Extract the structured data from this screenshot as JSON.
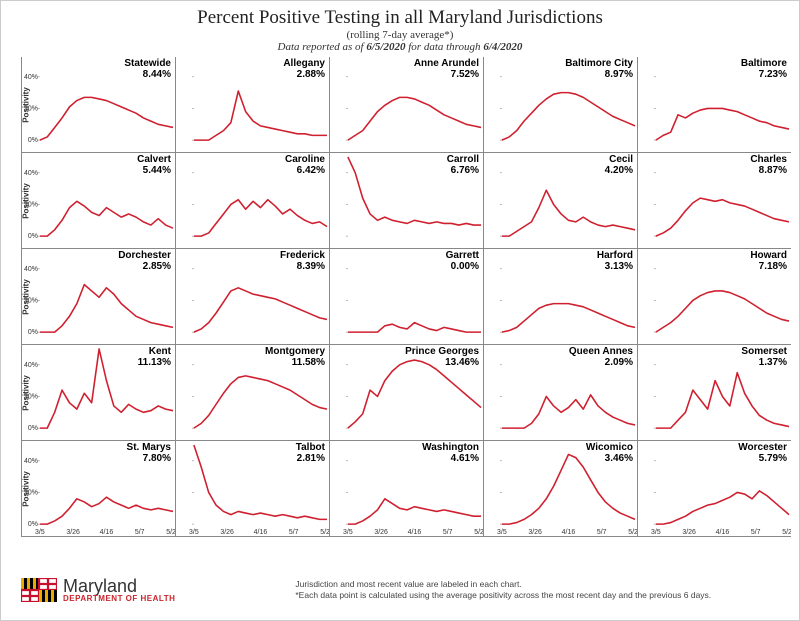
{
  "header": {
    "title": "Percent Positive Testing in all Maryland Jurisdictions",
    "subtitle": "(rolling 7-day average*)",
    "datanote_prefix": "Data reported as of ",
    "report_date": "6/5/2020",
    "datanote_mid": " for data through ",
    "through_date": "6/4/2020"
  },
  "chart_meta": {
    "series_color": "#cf2030",
    "grid_color": "#dddddd",
    "axis_color": "#888888",
    "ylabel": "Positivity",
    "ylim": [
      0,
      50
    ],
    "yticks": [
      0,
      20,
      40
    ],
    "ytick_labels": [
      "0%",
      "20%",
      "40%"
    ],
    "xtick_labels": [
      "3/5",
      "3/26",
      "4/16",
      "5/7",
      "5/28"
    ],
    "stroke_width": 1.6,
    "background": "#ffffff",
    "title_fontsize": 19,
    "panel_title_fontsize": 10
  },
  "panels": [
    {
      "name": "Statewide",
      "pct": "8.44%",
      "data": [
        0,
        2,
        8,
        14,
        21,
        25,
        27,
        27,
        26,
        25,
        23,
        21,
        19,
        17,
        14,
        12,
        10,
        9,
        8
      ]
    },
    {
      "name": "Allegany",
      "pct": "2.88%",
      "data": [
        0,
        0,
        0,
        3,
        6,
        11,
        31,
        18,
        12,
        9,
        8,
        7,
        6,
        5,
        4,
        4,
        3,
        3,
        3
      ]
    },
    {
      "name": "Anne Arundel",
      "pct": "7.52%",
      "data": [
        0,
        3,
        6,
        12,
        18,
        22,
        25,
        27,
        27,
        26,
        24,
        22,
        19,
        16,
        14,
        12,
        10,
        9,
        8
      ]
    },
    {
      "name": "Baltimore City",
      "pct": "8.97%",
      "data": [
        0,
        2,
        6,
        12,
        17,
        22,
        26,
        29,
        30,
        30,
        29,
        27,
        24,
        21,
        18,
        15,
        13,
        11,
        9
      ]
    },
    {
      "name": "Baltimore",
      "pct": "7.23%",
      "data": [
        0,
        3,
        5,
        16,
        14,
        17,
        19,
        20,
        20,
        20,
        19,
        18,
        16,
        14,
        12,
        11,
        9,
        8,
        7
      ]
    },
    {
      "name": "Calvert",
      "pct": "5.44%",
      "data": [
        0,
        0,
        4,
        10,
        18,
        22,
        19,
        15,
        13,
        18,
        15,
        12,
        14,
        12,
        9,
        7,
        11,
        7,
        5
      ]
    },
    {
      "name": "Caroline",
      "pct": "6.42%",
      "data": [
        0,
        0,
        2,
        8,
        14,
        20,
        23,
        17,
        22,
        18,
        23,
        19,
        14,
        17,
        13,
        10,
        8,
        9,
        6
      ]
    },
    {
      "name": "Carroll",
      "pct": "6.76%",
      "data": [
        50,
        40,
        24,
        14,
        10,
        12,
        10,
        9,
        8,
        10,
        9,
        8,
        9,
        8,
        8,
        7,
        8,
        7,
        7
      ]
    },
    {
      "name": "Cecil",
      "pct": "4.20%",
      "data": [
        0,
        0,
        3,
        6,
        9,
        18,
        29,
        20,
        14,
        10,
        9,
        12,
        9,
        7,
        6,
        7,
        6,
        5,
        4
      ]
    },
    {
      "name": "Charles",
      "pct": "8.87%",
      "data": [
        0,
        2,
        5,
        10,
        16,
        21,
        24,
        23,
        22,
        23,
        21,
        20,
        19,
        17,
        15,
        13,
        11,
        10,
        9
      ]
    },
    {
      "name": "Dorchester",
      "pct": "2.85%",
      "data": [
        0,
        0,
        0,
        4,
        10,
        18,
        30,
        26,
        22,
        28,
        24,
        18,
        14,
        10,
        8,
        6,
        5,
        4,
        3
      ]
    },
    {
      "name": "Frederick",
      "pct": "8.39%",
      "data": [
        0,
        2,
        6,
        12,
        19,
        26,
        28,
        26,
        24,
        23,
        22,
        21,
        19,
        17,
        15,
        13,
        11,
        9,
        8
      ]
    },
    {
      "name": "Garrett",
      "pct": "0.00%",
      "data": [
        0,
        0,
        0,
        0,
        0,
        4,
        5,
        3,
        2,
        6,
        4,
        2,
        1,
        3,
        2,
        1,
        0,
        0,
        0
      ]
    },
    {
      "name": "Harford",
      "pct": "3.13%",
      "data": [
        0,
        1,
        3,
        7,
        11,
        15,
        17,
        18,
        18,
        18,
        17,
        16,
        14,
        12,
        10,
        8,
        6,
        4,
        3
      ]
    },
    {
      "name": "Howard",
      "pct": "7.18%",
      "data": [
        0,
        3,
        6,
        10,
        15,
        20,
        23,
        25,
        26,
        26,
        25,
        23,
        21,
        18,
        15,
        12,
        10,
        8,
        7
      ]
    },
    {
      "name": "Kent",
      "pct": "11.13%",
      "data": [
        0,
        0,
        10,
        24,
        16,
        12,
        22,
        16,
        50,
        30,
        14,
        10,
        15,
        12,
        10,
        11,
        14,
        12,
        11
      ]
    },
    {
      "name": "Montgomery",
      "pct": "11.58%",
      "data": [
        0,
        3,
        8,
        15,
        22,
        28,
        32,
        33,
        32,
        31,
        30,
        28,
        26,
        24,
        21,
        18,
        15,
        13,
        12
      ]
    },
    {
      "name": "Prince Georges",
      "pct": "13.46%",
      "data": [
        0,
        4,
        9,
        24,
        20,
        30,
        36,
        40,
        42,
        43,
        42,
        40,
        37,
        33,
        29,
        25,
        21,
        17,
        13
      ]
    },
    {
      "name": "Queen Annes",
      "pct": "2.09%",
      "data": [
        0,
        0,
        0,
        0,
        3,
        9,
        20,
        14,
        10,
        13,
        18,
        12,
        21,
        14,
        10,
        7,
        5,
        3,
        2
      ]
    },
    {
      "name": "Somerset",
      "pct": "1.37%",
      "data": [
        0,
        0,
        0,
        5,
        10,
        24,
        18,
        12,
        30,
        20,
        14,
        35,
        22,
        14,
        8,
        5,
        3,
        2,
        1
      ]
    },
    {
      "name": "St. Marys",
      "pct": "7.80%",
      "data": [
        0,
        0,
        2,
        5,
        10,
        16,
        14,
        11,
        13,
        17,
        14,
        12,
        10,
        12,
        10,
        9,
        10,
        9,
        8
      ]
    },
    {
      "name": "Talbot",
      "pct": "2.81%",
      "data": [
        50,
        36,
        20,
        12,
        8,
        6,
        8,
        7,
        6,
        7,
        6,
        5,
        6,
        5,
        4,
        5,
        4,
        3,
        3
      ]
    },
    {
      "name": "Washington",
      "pct": "4.61%",
      "data": [
        0,
        0,
        2,
        5,
        9,
        16,
        13,
        10,
        9,
        11,
        10,
        9,
        8,
        9,
        8,
        7,
        6,
        5,
        5
      ]
    },
    {
      "name": "Wicomico",
      "pct": "3.46%",
      "data": [
        0,
        0,
        1,
        3,
        6,
        10,
        16,
        24,
        34,
        44,
        42,
        36,
        28,
        20,
        14,
        10,
        7,
        5,
        3
      ]
    },
    {
      "name": "Worcester",
      "pct": "5.79%",
      "data": [
        0,
        0,
        1,
        3,
        5,
        8,
        10,
        12,
        13,
        15,
        17,
        20,
        19,
        16,
        21,
        18,
        14,
        10,
        6
      ]
    }
  ],
  "footer": {
    "org_name": "Maryland",
    "dept": "DEPARTMENT OF HEALTH",
    "note1": "Jurisdiction and most recent value are labeled in each chart.",
    "note2": "*Each data point is calculated using the average positivity across the most recent day and the previous 6 days."
  }
}
